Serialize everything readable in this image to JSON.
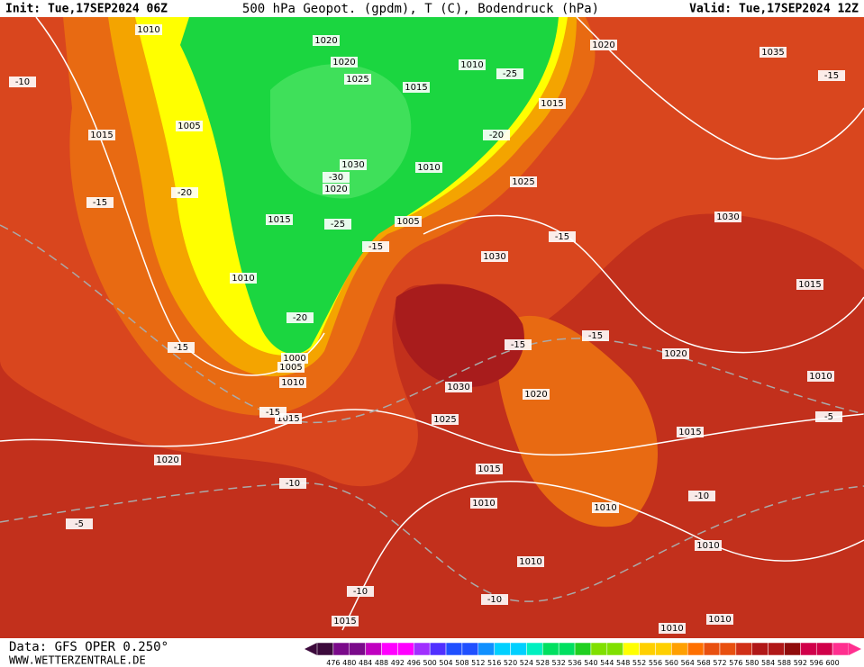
{
  "header": {
    "init": "Init: Tue,17SEP2024 06Z",
    "title": "500 hPa Geopot. (gpdm), T (C), Bodendruck (hPa)",
    "valid": "Valid: Tue,17SEP2024 12Z"
  },
  "footer": {
    "source": "Data: GFS OPER 0.250°",
    "site": "WWW.WETTERZENTRALE.DE"
  },
  "colorbar": {
    "labels": [
      476,
      480,
      484,
      488,
      492,
      496,
      500,
      504,
      508,
      512,
      516,
      520,
      524,
      528,
      532,
      536,
      540,
      544,
      548,
      552,
      556,
      560,
      564,
      568,
      572,
      576,
      580,
      584,
      588,
      592,
      596,
      600
    ]
  },
  "map": {
    "isobar_labels": [
      1010,
      1020,
      1020,
      1020,
      1025,
      1010,
      1015,
      1015,
      1035,
      1015,
      1005,
      1030,
      1020,
      1010,
      1025,
      1030,
      1015,
      1005,
      1010,
      1030,
      1015,
      1000,
      1005,
      1010,
      1020,
      1010,
      1030,
      1020,
      1025,
      1015,
      1015,
      1020,
      1015,
      1010,
      1010,
      1010,
      1010,
      1015,
      1010,
      1010
    ],
    "temperature_labels": [
      -10,
      -25,
      -20,
      -20,
      -15,
      -25,
      -15,
      -15,
      -20,
      -15,
      -15,
      -15,
      -15,
      -10,
      -5,
      -10,
      -10,
      -10,
      -5,
      -15,
      -30
    ]
  }
}
